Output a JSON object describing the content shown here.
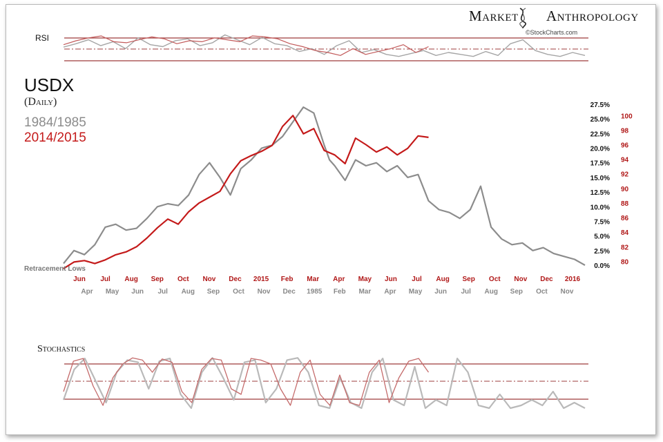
{
  "brand": {
    "left": "Market",
    "right": "Anthropology",
    "icon": "dna-helix-icon"
  },
  "credit": "©StockCharts.com",
  "panels": {
    "rsi_label": "RSI",
    "stochastics_label": "Stochastics"
  },
  "colors": {
    "series_1984": "#8c8c8c",
    "series_2014": "#c41a1a",
    "ref_line": "#9e3b3b",
    "text_red": "#b01717"
  },
  "chart_data": [
    {
      "type": "line",
      "title": "USDX",
      "subtitle": "(Daily)",
      "annotations": [
        "Retracement Lows"
      ],
      "x_top_labels": [
        "Jun",
        "Jul",
        "Aug",
        "Sep",
        "Oct",
        "Nov",
        "Dec",
        "2015",
        "Feb",
        "Mar",
        "Apr",
        "May",
        "Jun",
        "Jul",
        "Aug",
        "Sep",
        "Oct",
        "Nov",
        "Dec",
        "2016"
      ],
      "x_bottom_labels": [
        "Apr",
        "May",
        "Jun",
        "Jul",
        "Aug",
        "Sep",
        "Oct",
        "Nov",
        "Dec",
        "1985",
        "Feb",
        "Mar",
        "Apr",
        "May",
        "Jun",
        "Jul",
        "Aug",
        "Sep",
        "Oct",
        "Nov"
      ],
      "y_percent_ticks": [
        "27.5%",
        "25.0%",
        "22.5%",
        "20.0%",
        "17.5%",
        "15.0%",
        "12.5%",
        "10.0%",
        "7.5%",
        "5.0%",
        "2.5%",
        "0.0%"
      ],
      "y_percent_range": [
        0,
        27.5
      ],
      "y_index_ticks": [
        "100",
        "98",
        "96",
        "94",
        "92",
        "90",
        "88",
        "86",
        "84",
        "82",
        "80"
      ],
      "y_index_range": [
        78.9,
        100.5
      ],
      "x_range": [
        0,
        1.0
      ],
      "grid": false,
      "series": [
        {
          "name": "1984/1985",
          "x": [
            0,
            0.02,
            0.04,
            0.06,
            0.08,
            0.1,
            0.12,
            0.14,
            0.16,
            0.18,
            0.2,
            0.22,
            0.24,
            0.26,
            0.28,
            0.3,
            0.32,
            0.34,
            0.36,
            0.38,
            0.4,
            0.42,
            0.44,
            0.46,
            0.48,
            0.5,
            0.51,
            0.52,
            0.54,
            0.56,
            0.58,
            0.6,
            0.62,
            0.64,
            0.66,
            0.68,
            0.7,
            0.72,
            0.74,
            0.76,
            0.78,
            0.8,
            0.82,
            0.84,
            0.86,
            0.88,
            0.9,
            0.92,
            0.94,
            0.96,
            0.98,
            1.0
          ],
          "y": [
            0.3,
            2.5,
            1.8,
            3.5,
            6.5,
            7.0,
            6.0,
            6.3,
            8.0,
            10.0,
            10.5,
            10.2,
            12.0,
            15.5,
            17.5,
            15.0,
            12.0,
            16.5,
            18.0,
            20.0,
            20.5,
            22.0,
            24.5,
            27.0,
            26.0,
            20.5,
            18.0,
            17.0,
            14.5,
            18.0,
            17.0,
            17.5,
            16.0,
            17.0,
            15.0,
            15.5,
            11.0,
            9.5,
            9.0,
            8.0,
            9.5,
            13.5,
            6.5,
            4.5,
            3.5,
            3.8,
            2.5,
            3.0,
            2.0,
            1.5,
            1.0,
            0.0
          ]
        },
        {
          "name": "2014/2015",
          "x": [
            0,
            0.02,
            0.04,
            0.06,
            0.08,
            0.1,
            0.12,
            0.14,
            0.16,
            0.18,
            0.2,
            0.22,
            0.24,
            0.26,
            0.28,
            0.3,
            0.32,
            0.34,
            0.36,
            0.38,
            0.4,
            0.42,
            0.44,
            0.46,
            0.48,
            0.5,
            0.52,
            0.54,
            0.56,
            0.58,
            0.6,
            0.62,
            0.64,
            0.66,
            0.68,
            0.7
          ],
          "y": [
            79.0,
            79.9,
            80.1,
            79.7,
            80.2,
            80.9,
            81.3,
            82.0,
            83.2,
            84.6,
            85.8,
            85.1,
            86.8,
            88.0,
            88.8,
            89.6,
            92.0,
            93.8,
            94.5,
            95.1,
            95.9,
            98.5,
            100.0,
            97.5,
            98.2,
            95.2,
            94.6,
            93.4,
            96.9,
            96.0,
            95.0,
            95.7,
            94.6,
            95.5,
            97.2,
            97.0
          ]
        }
      ]
    },
    {
      "type": "line",
      "title": "RSI",
      "reference_lines": [
        70,
        50,
        30
      ],
      "y_range": [
        20,
        85
      ],
      "series": [
        {
          "name": "1984/1985",
          "y": [
            55,
            62,
            70,
            58,
            66,
            52,
            74,
            60,
            56,
            68,
            72,
            58,
            64,
            80,
            70,
            60,
            75,
            62,
            58,
            46,
            52,
            40,
            58,
            68,
            44,
            50,
            40,
            36,
            42,
            48,
            38,
            44,
            40,
            36,
            46,
            38,
            62,
            70,
            48,
            40,
            36,
            44,
            38
          ]
        },
        {
          "name": "2014/2015",
          "y": [
            60,
            68,
            74,
            78,
            66,
            64,
            70,
            76,
            72,
            62,
            68,
            66,
            74,
            70,
            66,
            78,
            76,
            72,
            62,
            56,
            48,
            44,
            38,
            52,
            40,
            46,
            52,
            60,
            44,
            56
          ]
        }
      ]
    },
    {
      "type": "line",
      "title": "Stochastics",
      "reference_lines": [
        80,
        50,
        20
      ],
      "y_range": [
        0,
        100
      ],
      "series": [
        {
          "name": "1984/1985",
          "y": [
            20,
            75,
            95,
            55,
            15,
            70,
            92,
            88,
            40,
            90,
            95,
            30,
            5,
            70,
            96,
            60,
            20,
            88,
            92,
            15,
            40,
            92,
            96,
            70,
            10,
            5,
            60,
            15,
            5,
            70,
            95,
            20,
            10,
            80,
            5,
            20,
            10,
            95,
            70,
            10,
            5,
            30,
            5,
            10,
            20,
            10,
            35,
            5,
            15,
            5
          ]
        },
        {
          "name": "2014/2015",
          "y": [
            35,
            90,
            95,
            45,
            10,
            60,
            85,
            96,
            92,
            70,
            94,
            88,
            35,
            15,
            75,
            95,
            92,
            40,
            30,
            95,
            92,
            85,
            40,
            10,
            70,
            92,
            30,
            10,
            65,
            15,
            10,
            70,
            92,
            15,
            60,
            90,
            95,
            70
          ]
        }
      ]
    }
  ]
}
